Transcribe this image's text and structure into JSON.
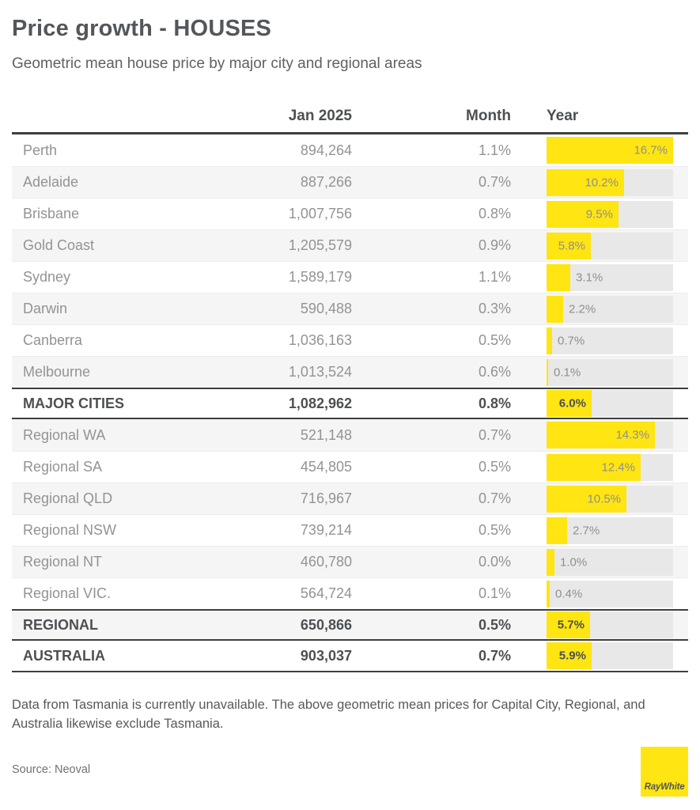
{
  "header": {
    "title": "Price growth - HOUSES",
    "subtitle": "Geometric mean house price by major city and regional areas"
  },
  "table": {
    "columns": [
      "",
      "Jan 2025",
      "Month",
      "Year"
    ],
    "rows": [
      {
        "name": "Perth",
        "price": "894,264",
        "month": "1.1%",
        "year": "16.7%",
        "year_value": 16.7,
        "is_total": false
      },
      {
        "name": "Adelaide",
        "price": "887,266",
        "month": "0.7%",
        "year": "10.2%",
        "year_value": 10.2,
        "is_total": false
      },
      {
        "name": "Brisbane",
        "price": "1,007,756",
        "month": "0.8%",
        "year": "9.5%",
        "year_value": 9.5,
        "is_total": false
      },
      {
        "name": "Gold Coast",
        "price": "1,205,579",
        "month": "0.9%",
        "year": "5.8%",
        "year_value": 5.8,
        "is_total": false
      },
      {
        "name": "Sydney",
        "price": "1,589,179",
        "month": "1.1%",
        "year": "3.1%",
        "year_value": 3.1,
        "is_total": false
      },
      {
        "name": "Darwin",
        "price": "590,488",
        "month": "0.3%",
        "year": "2.2%",
        "year_value": 2.2,
        "is_total": false
      },
      {
        "name": "Canberra",
        "price": "1,036,163",
        "month": "0.5%",
        "year": "0.7%",
        "year_value": 0.7,
        "is_total": false
      },
      {
        "name": "Melbourne",
        "price": "1,013,524",
        "month": "0.6%",
        "year": "0.1%",
        "year_value": 0.1,
        "is_total": false
      },
      {
        "name": "MAJOR CITIES",
        "price": "1,082,962",
        "month": "0.8%",
        "year": "6.0%",
        "year_value": 6.0,
        "is_total": true
      },
      {
        "name": "Regional WA",
        "price": "521,148",
        "month": "0.7%",
        "year": "14.3%",
        "year_value": 14.3,
        "is_total": false
      },
      {
        "name": "Regional SA",
        "price": "454,805",
        "month": "0.5%",
        "year": "12.4%",
        "year_value": 12.4,
        "is_total": false
      },
      {
        "name": "Regional QLD",
        "price": "716,967",
        "month": "0.7%",
        "year": "10.5%",
        "year_value": 10.5,
        "is_total": false
      },
      {
        "name": "Regional NSW",
        "price": "739,214",
        "month": "0.5%",
        "year": "2.7%",
        "year_value": 2.7,
        "is_total": false
      },
      {
        "name": "Regional NT",
        "price": "460,780",
        "month": "0.0%",
        "year": "1.0%",
        "year_value": 1.0,
        "is_total": false
      },
      {
        "name": "Regional VIC.",
        "price": "564,724",
        "month": "0.1%",
        "year": "0.4%",
        "year_value": 0.4,
        "is_total": false
      },
      {
        "name": "REGIONAL",
        "price": "650,866",
        "month": "0.5%",
        "year": "5.7%",
        "year_value": 5.7,
        "is_total": true
      },
      {
        "name": "AUSTRALIA",
        "price": "903,037",
        "month": "0.7%",
        "year": "5.9%",
        "year_value": 5.9,
        "is_total": true
      }
    ]
  },
  "chart_data": {
    "type": "bar",
    "title": "Year price growth (%)",
    "categories": [
      "Perth",
      "Adelaide",
      "Brisbane",
      "Gold Coast",
      "Sydney",
      "Darwin",
      "Canberra",
      "Melbourne",
      "MAJOR CITIES",
      "Regional WA",
      "Regional SA",
      "Regional QLD",
      "Regional NSW",
      "Regional NT",
      "Regional VIC.",
      "REGIONAL",
      "AUSTRALIA"
    ],
    "values": [
      16.7,
      10.2,
      9.5,
      5.8,
      3.1,
      2.2,
      0.7,
      0.1,
      6.0,
      14.3,
      12.4,
      10.5,
      2.7,
      1.0,
      0.4,
      5.7,
      5.9
    ],
    "xlabel": "",
    "ylabel": "",
    "xlim": [
      0,
      16.7
    ],
    "bar_color": "#FFE512",
    "track_color": "#E8E8E8"
  },
  "footer": {
    "note": "Data from Tasmania is currently unavailable. The above geometric mean prices for Capital City, Regional, and Australia likewise exclude Tasmania.",
    "source": "Source: Neoval",
    "logo_text": "RayWhite"
  },
  "colors": {
    "accent_yellow": "#FFE512",
    "dark_border": "#3D3F40",
    "row_alt": "#F5F5F5"
  }
}
